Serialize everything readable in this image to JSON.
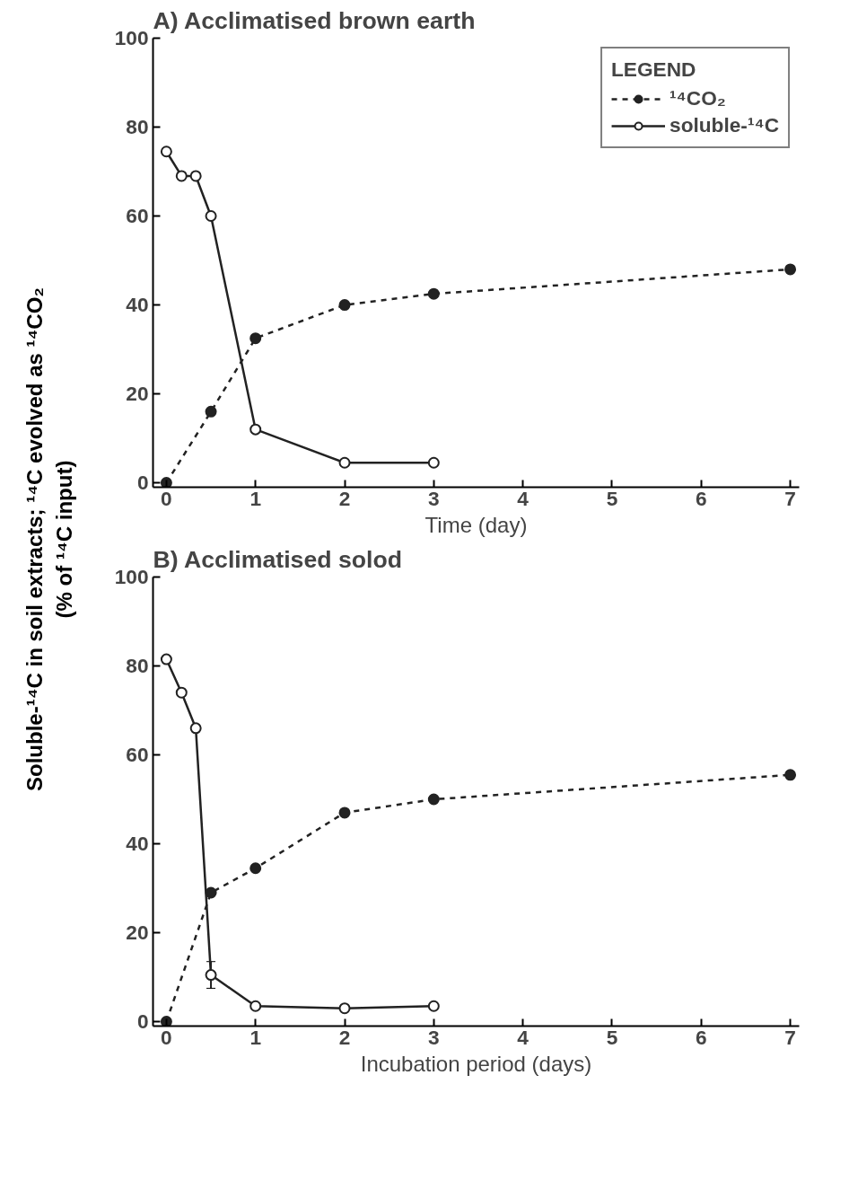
{
  "chart_data": [
    {
      "type": "line",
      "title": "A) Acclimatised brown earth",
      "xlabel": "Time (day)",
      "ylabel": "Soluble-¹⁴C in soil extracts; ¹⁴C evolved as ¹⁴CO₂\n(% of ¹⁴C input)",
      "legend_title": "LEGEND",
      "legend": "top right",
      "marker": "circle",
      "xlim": [
        -0.15,
        7.1
      ],
      "ylim": [
        -1,
        100
      ],
      "xticks": [
        0,
        1,
        2,
        3,
        4,
        5,
        6,
        7
      ],
      "yticks": [
        0,
        20,
        40,
        60,
        80,
        100
      ],
      "grid": false,
      "series": [
        {
          "name": "¹⁴CO₂",
          "color": "#222222",
          "line_style": "dashed",
          "x": [
            0,
            0.5,
            1,
            2,
            3,
            7
          ],
          "values": [
            0,
            16,
            32.5,
            40,
            42.5,
            48
          ]
        },
        {
          "name": "soluble-¹⁴C",
          "color": "#222222",
          "line_style": "solid",
          "x": [
            0,
            0.17,
            0.33,
            0.5,
            1,
            2,
            3
          ],
          "values": [
            74.5,
            69,
            69,
            60,
            12,
            4.5,
            4.5
          ]
        }
      ]
    },
    {
      "type": "line",
      "title": "B) Acclimatised solod",
      "xlabel": "Incubation period (days)",
      "legend": false,
      "marker": "circle",
      "xlim": [
        -0.15,
        7.1
      ],
      "ylim": [
        -1,
        100
      ],
      "xticks": [
        0,
        1,
        2,
        3,
        4,
        5,
        6,
        7
      ],
      "yticks": [
        0,
        20,
        40,
        60,
        80,
        100
      ],
      "grid": false,
      "series": [
        {
          "color": "#222222",
          "line_style": "dashed",
          "x": [
            0,
            0.5,
            1,
            2,
            3,
            7
          ],
          "values": [
            0,
            29,
            34.5,
            47,
            50,
            55.5
          ]
        },
        {
          "color": "#222222",
          "line_style": "solid",
          "x": [
            0,
            0.17,
            0.33,
            0.5,
            1,
            2,
            3
          ],
          "values": [
            81.5,
            74,
            66,
            10.5,
            3.5,
            3,
            3.5
          ],
          "errors": [
            null,
            null,
            null,
            3,
            null,
            null,
            null
          ]
        }
      ]
    }
  ]
}
